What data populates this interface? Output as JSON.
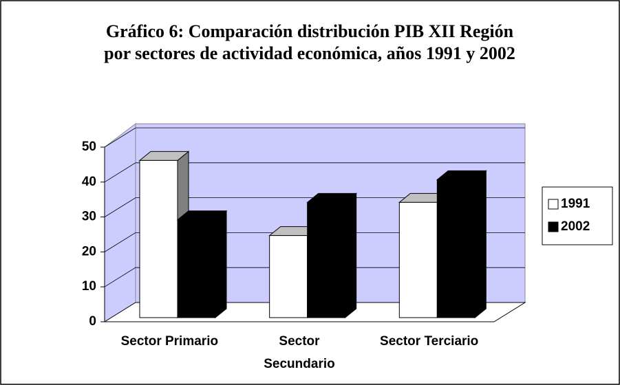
{
  "chart_data": {
    "type": "bar3d",
    "title": [
      "Gráfico 6: Comparación distribución PIB XII Región",
      "por sectores de actividad económica, años 1991 y 2002"
    ],
    "categories": [
      "Sector Primario",
      "Sector Secundario",
      "Sector Terciario"
    ],
    "series": [
      {
        "name": "1991",
        "color": "#ffffff",
        "values": [
          45,
          23.5,
          33
        ]
      },
      {
        "name": "2002",
        "color": "#000000",
        "values": [
          28,
          33,
          39.5
        ]
      }
    ],
    "ylim": [
      0,
      50
    ],
    "yticks": [
      0,
      10,
      20,
      30,
      40,
      50
    ],
    "grid": true,
    "legend": "right"
  }
}
